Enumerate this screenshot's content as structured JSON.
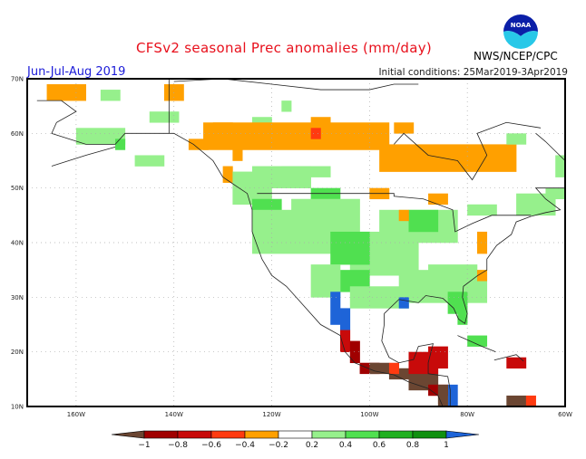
{
  "header": {
    "title": "CFSv2 seasonal Prec anomalies (mm/day)",
    "season": "Jun-Jul-Aug 2019",
    "initial_conditions": "Initial conditions: 25Mar2019-3Apr2019",
    "agency": "NWS/NCEP/CPC",
    "logo_text": "NOAA",
    "logo_icon": "noaa-logo-icon"
  },
  "map": {
    "region": "North America",
    "lat_range": [
      10,
      70
    ],
    "lon_range": [
      -170,
      -60
    ],
    "lat_ticks": [
      "70N",
      "60N",
      "50N",
      "40N",
      "30N",
      "20N",
      "10N"
    ],
    "lon_ticks": [
      "160W",
      "140W",
      "120W",
      "100W",
      "80W",
      "60W"
    ],
    "features": [
      {
        "region": "Northern Canada (Yukon to Hudson Bay)",
        "category": "-0.4 to -0.2"
      },
      {
        "region": "Great Slave Lake area",
        "category": "-0.6 to -0.4"
      },
      {
        "region": "Western and central US",
        "category": "0.2 to 0.8"
      },
      {
        "region": "Northwest Mexico (Sierra Madre)",
        "category": "> 1"
      },
      {
        "region": "Southern Mexico and Central America",
        "category": "< -0.6"
      },
      {
        "region": "Hispaniola",
        "category": "-0.8 to -0.6"
      },
      {
        "region": "US Southeast / Florida",
        "category": "0.2 to 0.8"
      },
      {
        "region": "Mid-Atlantic coast",
        "category": "-0.4 to -0.2"
      }
    ]
  },
  "colorbar": {
    "tick_labels": [
      "-1",
      "-0.8",
      "-0.6",
      "-0.4",
      "-0.2",
      "0.2",
      "0.4",
      "0.6",
      "0.8",
      "1"
    ],
    "colors": [
      "#6b4632",
      "#a00000",
      "#c80a0a",
      "#ff3a10",
      "#ffa000",
      "#ffffff",
      "#96f08c",
      "#50e050",
      "#20b020",
      "#109010",
      "#1e64d8"
    ]
  }
}
